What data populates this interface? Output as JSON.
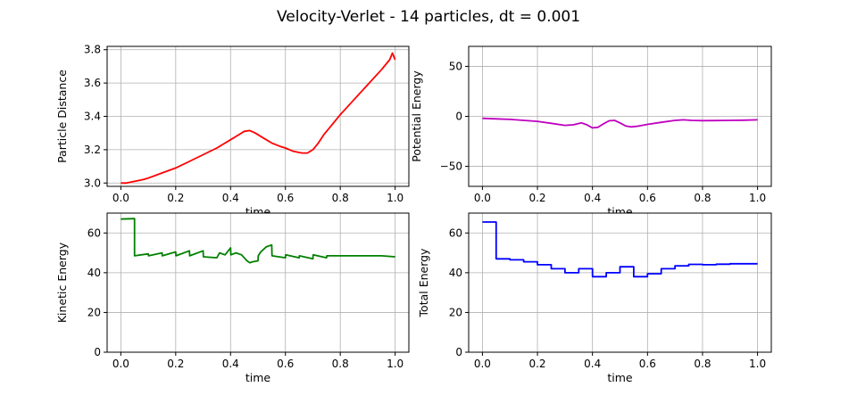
{
  "figure_title": "Velocity-Verlet - 14 particles, dt = 0.001",
  "chart_data": [
    {
      "type": "line",
      "ylabel": "Particle Distance",
      "xlabel": "time",
      "xlim": [
        -0.05,
        1.05
      ],
      "ylim": [
        2.98,
        3.82
      ],
      "xticks": [
        "0.0",
        "0.2",
        "0.4",
        "0.6",
        "0.8",
        "1.0"
      ],
      "yticks": [
        "3.0",
        "3.2",
        "3.4",
        "3.6",
        "3.8"
      ],
      "grid": true,
      "color": "#ff0000",
      "x": [
        0.0,
        0.02,
        0.05,
        0.08,
        0.1,
        0.15,
        0.2,
        0.25,
        0.3,
        0.35,
        0.4,
        0.43,
        0.45,
        0.47,
        0.49,
        0.52,
        0.55,
        0.58,
        0.6,
        0.63,
        0.66,
        0.68,
        0.7,
        0.72,
        0.74,
        0.77,
        0.8,
        0.85,
        0.9,
        0.95,
        0.98,
        0.99,
        1.0
      ],
      "y": [
        3.0,
        3.0,
        3.01,
        3.02,
        3.03,
        3.06,
        3.09,
        3.13,
        3.17,
        3.21,
        3.26,
        3.29,
        3.31,
        3.315,
        3.3,
        3.27,
        3.24,
        3.22,
        3.21,
        3.19,
        3.18,
        3.18,
        3.2,
        3.24,
        3.29,
        3.35,
        3.41,
        3.5,
        3.59,
        3.68,
        3.74,
        3.78,
        3.74
      ]
    },
    {
      "type": "line",
      "ylabel": "Potential Energy",
      "xlabel": "time",
      "xlim": [
        -0.05,
        1.05
      ],
      "ylim": [
        -70,
        70
      ],
      "xticks": [
        "0.0",
        "0.2",
        "0.4",
        "0.6",
        "0.8",
        "1.0"
      ],
      "yticks": [
        "−50",
        "0",
        "50"
      ],
      "grid": true,
      "color": "#bf00bf",
      "x": [
        0.0,
        0.05,
        0.1,
        0.15,
        0.2,
        0.25,
        0.3,
        0.33,
        0.36,
        0.38,
        0.4,
        0.42,
        0.44,
        0.46,
        0.48,
        0.5,
        0.52,
        0.54,
        0.56,
        0.6,
        0.65,
        0.7,
        0.73,
        0.76,
        0.8,
        0.85,
        0.9,
        0.95,
        1.0
      ],
      "y": [
        -2,
        -2.5,
        -3,
        -4,
        -5,
        -7,
        -9,
        -8.5,
        -6.5,
        -8.5,
        -11.5,
        -11,
        -7.5,
        -4.5,
        -4,
        -6.5,
        -9.5,
        -10.5,
        -10,
        -8,
        -6,
        -4,
        -3.5,
        -4,
        -4.3,
        -4.2,
        -4,
        -3.8,
        -3.5
      ]
    },
    {
      "type": "line",
      "ylabel": "Kinetic Energy",
      "xlabel": "time",
      "xlim": [
        -0.05,
        1.05
      ],
      "ylim": [
        0,
        70
      ],
      "xticks": [
        "0.0",
        "0.2",
        "0.4",
        "0.6",
        "0.8",
        "1.0"
      ],
      "yticks": [
        "0",
        "20",
        "40",
        "60"
      ],
      "grid": true,
      "color": "#008000",
      "x": [
        0.0,
        0.05,
        0.05,
        0.1,
        0.101,
        0.15,
        0.151,
        0.2,
        0.201,
        0.25,
        0.251,
        0.3,
        0.301,
        0.35,
        0.36,
        0.38,
        0.4,
        0.401,
        0.42,
        0.44,
        0.46,
        0.47,
        0.48,
        0.5,
        0.501,
        0.51,
        0.53,
        0.55,
        0.551,
        0.6,
        0.601,
        0.65,
        0.651,
        0.7,
        0.701,
        0.75,
        0.751,
        0.8,
        0.85,
        0.9,
        0.95,
        1.0
      ],
      "y": [
        67,
        67.2,
        48.5,
        49.5,
        48.5,
        50,
        48.5,
        50.5,
        48.5,
        51,
        48.5,
        51,
        48,
        47.5,
        50,
        49,
        52.5,
        49,
        50,
        49,
        46,
        45,
        45.5,
        46,
        48.5,
        50.5,
        53,
        54,
        48.5,
        47.5,
        49,
        47.5,
        48.5,
        47,
        49,
        47.5,
        48.5,
        48.5,
        48.5,
        48.5,
        48.5,
        48
      ]
    },
    {
      "type": "line",
      "ylabel": "Total Energy",
      "xlabel": "time",
      "xlim": [
        -0.05,
        1.05
      ],
      "ylim": [
        0,
        70
      ],
      "xticks": [
        "0.0",
        "0.2",
        "0.4",
        "0.6",
        "0.8",
        "1.0"
      ],
      "yticks": [
        "0",
        "20",
        "40",
        "60"
      ],
      "grid": true,
      "color": "#0000ff",
      "x": [
        0.0,
        0.05,
        0.05,
        0.1,
        0.1,
        0.15,
        0.15,
        0.2,
        0.2,
        0.25,
        0.25,
        0.3,
        0.3,
        0.35,
        0.35,
        0.4,
        0.4,
        0.45,
        0.45,
        0.5,
        0.5,
        0.55,
        0.55,
        0.6,
        0.6,
        0.65,
        0.65,
        0.7,
        0.7,
        0.75,
        0.75,
        0.8,
        0.8,
        0.85,
        0.85,
        0.9,
        0.9,
        1.0
      ],
      "y": [
        65.5,
        65.5,
        47,
        47,
        46.5,
        46.5,
        45.5,
        45.5,
        44,
        44,
        42,
        42,
        40,
        40,
        42,
        42,
        38,
        38,
        40,
        40,
        43,
        43,
        38,
        38,
        39.5,
        39.5,
        42,
        42,
        43.5,
        43.5,
        44.2,
        44.2,
        44,
        44,
        44.3,
        44.3,
        44.5,
        44.5
      ]
    }
  ]
}
